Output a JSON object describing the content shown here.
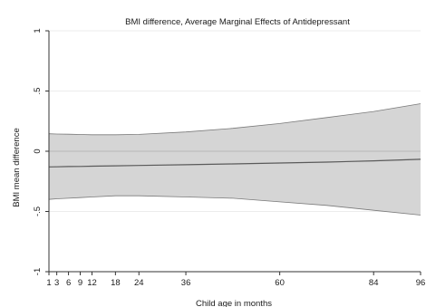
{
  "chart_data": {
    "type": "area",
    "title": "BMI difference, Average Marginal Effects of Antidepressant",
    "xlabel": "Child age in months",
    "ylabel": "BMI mean difference",
    "xlim": [
      1,
      96
    ],
    "ylim": [
      -1,
      1
    ],
    "xticks": [
      1,
      3,
      6,
      9,
      12,
      18,
      24,
      36,
      60,
      84,
      96
    ],
    "xtick_labels": [
      "1",
      "3",
      "6",
      "9",
      "12",
      "18",
      "24",
      "36",
      "60",
      "84",
      "96"
    ],
    "yticks": [
      -1,
      -0.5,
      0,
      0.5,
      1
    ],
    "ytick_labels": [
      "-1",
      "-.5",
      "0",
      ".5",
      "1"
    ],
    "grid": "horizontal",
    "legend": "none",
    "x": [
      1,
      3,
      6,
      9,
      12,
      18,
      24,
      36,
      48,
      60,
      72,
      84,
      96
    ],
    "series": [
      {
        "role": "estimate",
        "values": [
          -0.13,
          -0.129,
          -0.127,
          -0.126,
          -0.124,
          -0.121,
          -0.118,
          -0.112,
          -0.105,
          -0.098,
          -0.09,
          -0.08,
          -0.067
        ]
      },
      {
        "role": "ci_upper",
        "values": [
          0.145,
          0.143,
          0.141,
          0.139,
          0.137,
          0.137,
          0.14,
          0.16,
          0.19,
          0.23,
          0.28,
          0.33,
          0.395
        ]
      },
      {
        "role": "ci_lower",
        "values": [
          -0.4,
          -0.395,
          -0.39,
          -0.385,
          -0.38,
          -0.37,
          -0.37,
          -0.38,
          -0.39,
          -0.42,
          -0.45,
          -0.49,
          -0.53
        ]
      }
    ],
    "colors": {
      "band_fill": "#d5d5d5",
      "band_edge": "#7a7a7a",
      "estimate_line": "#5a5a5a",
      "zero_line": "#b8b8b8",
      "grid": "#ececec",
      "axis": "#333333"
    }
  }
}
